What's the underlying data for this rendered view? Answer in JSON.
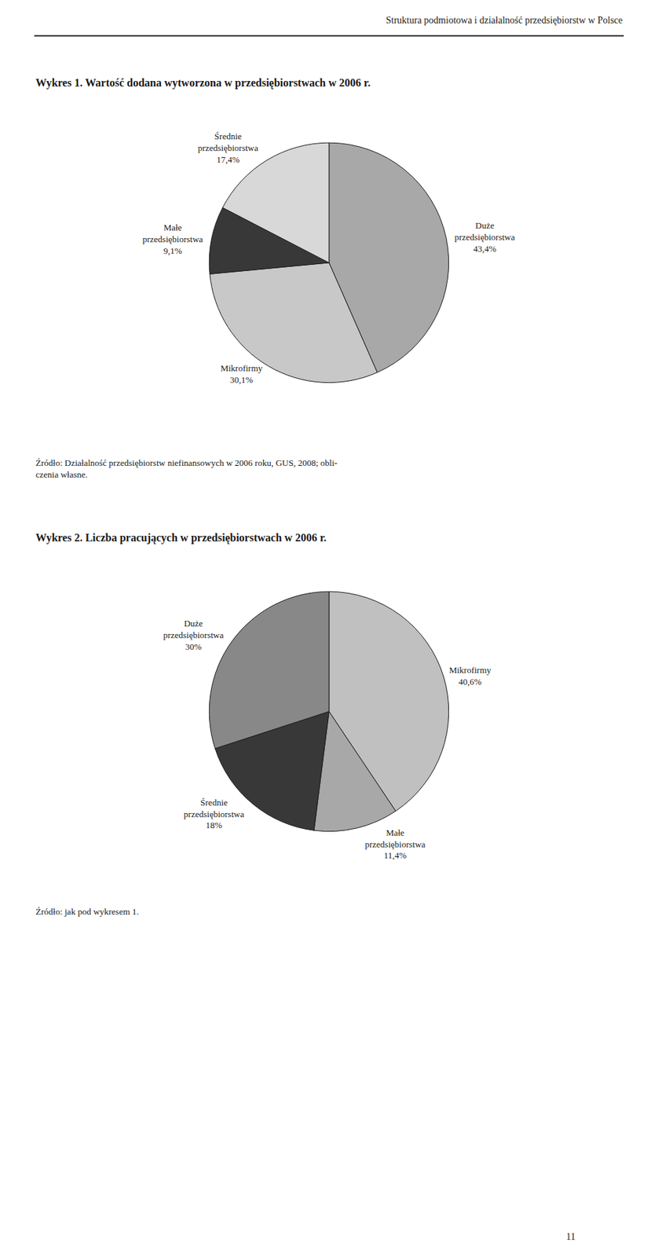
{
  "title": "Struktura podmiotowa i działalność przedsiębiorstw w Polsce",
  "annotations": [
    "11"
  ],
  "chart_data": [
    {
      "type": "pie",
      "title": "Wykres 1. Wartość dodana wytworzona w przedsiębiorstwach w 2006 r.",
      "categories": [
        "Duże\nprzedsiębiorstwa",
        "Mikrofirmy",
        "Małe\nprzedsiębiorstwa",
        "Średnie\nprzedsiębiorstwa"
      ],
      "values": [
        43.4,
        30.1,
        9.1,
        17.4
      ],
      "value_labels": [
        "43,4%",
        "30,1%",
        "9,1%",
        "17,4%"
      ],
      "colors": [
        "#a8a8a8",
        "#c8c8c8",
        "#383838",
        "#d8d8d8"
      ],
      "data_labels": true,
      "annotations": [
        "Źródło: Działalność przedsiębiorstw niefinansowych w 2006 roku, GUS, 2008; obli-\nczenia własne."
      ]
    },
    {
      "type": "pie",
      "title": "Wykres 2. Liczba pracujących w przedsiębiorstwach w 2006 r.",
      "categories": [
        "Mikrofirmy",
        "Małe\nprzedsiębiorstwa",
        "Średnie\nprzedsiębiorstwa",
        "Duże\nprzedsiębiorstwa"
      ],
      "values": [
        40.6,
        11.4,
        18.0,
        30.0
      ],
      "value_labels": [
        "40,6%",
        "11,4%",
        "18%",
        "30%"
      ],
      "colors": [
        "#c0c0c0",
        "#a8a8a8",
        "#383838",
        "#888888"
      ],
      "data_labels": true,
      "annotations": [
        "Źródło: jak pod wykresem 1."
      ]
    }
  ]
}
